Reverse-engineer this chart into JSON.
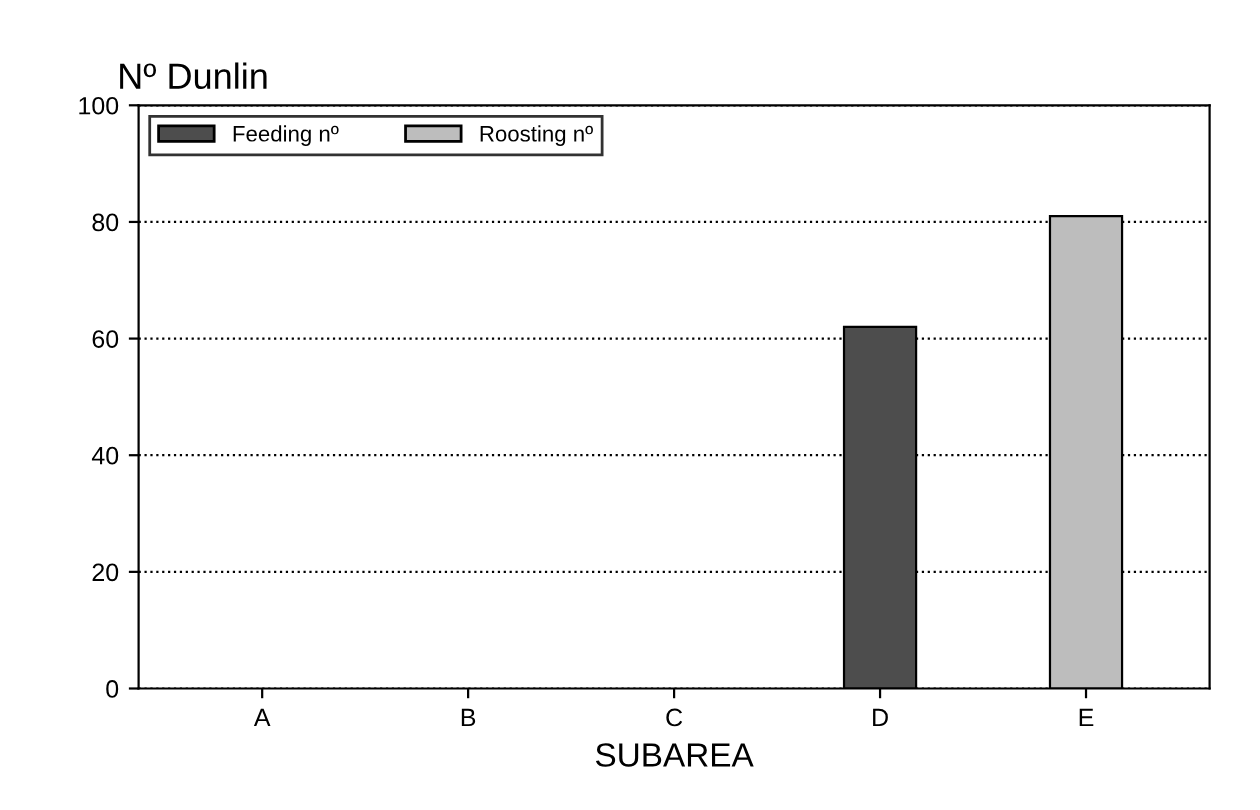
{
  "chart_data": {
    "type": "bar",
    "title": "Nº Dunlin",
    "xlabel": "SUBAREA",
    "categories": [
      "A",
      "B",
      "C",
      "D",
      "E"
    ],
    "series": [
      {
        "name": "Feeding nº",
        "color": "#4d4d4d",
        "values": [
          null,
          null,
          null,
          62,
          null
        ]
      },
      {
        "name": "Roosting nº",
        "color": "#bdbdbd",
        "values": [
          null,
          null,
          null,
          null,
          81
        ]
      }
    ],
    "ylim": [
      0,
      100
    ],
    "yticks": [
      0,
      20,
      40,
      60,
      80,
      100
    ],
    "grid": "y",
    "legend": "top left"
  }
}
